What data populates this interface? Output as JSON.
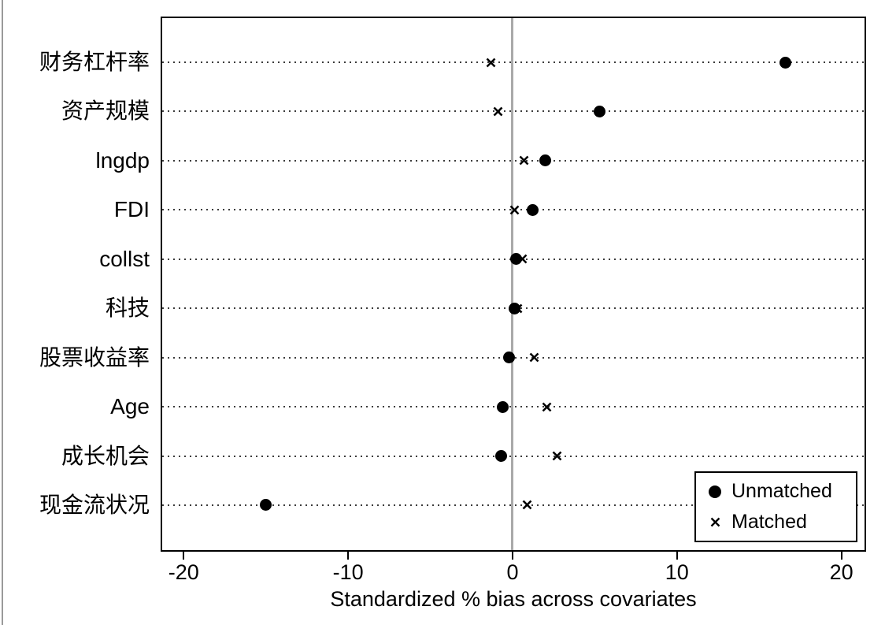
{
  "chart_data": {
    "type": "scatter",
    "orientation": "horizontal-dot-plot",
    "title": "",
    "xlabel": "Standardized % bias across covariates",
    "ylabel": "",
    "xlim": [
      -21.4,
      21.5
    ],
    "x_ticks": [
      -20,
      -10,
      0,
      10,
      20
    ],
    "x_tick_labels": [
      "-20",
      "-10",
      "0",
      "10",
      "20"
    ],
    "reference_line_x": 0,
    "grid": "dotted horizontal line per category",
    "legend_position": "inside bottom-right",
    "categories": [
      "财务杠杆率",
      "资产规模",
      "lngdp",
      "FDI",
      "collst",
      "科技",
      "股票收益率",
      "Age",
      "成长机会",
      "现金流状况"
    ],
    "series": [
      {
        "name": "Unmatched",
        "marker": "filled-circle",
        "color": "#000000",
        "values": [
          16.6,
          5.3,
          2.0,
          1.2,
          0.2,
          0.1,
          -0.2,
          -0.6,
          -0.7,
          -15.0
        ]
      },
      {
        "name": "Matched",
        "marker": "x",
        "color": "#000000",
        "values": [
          -1.3,
          -0.9,
          0.7,
          0.1,
          0.6,
          0.3,
          1.3,
          2.1,
          2.7,
          0.9
        ]
      }
    ],
    "colors": {
      "marker": "#000000",
      "reference_line": "#a9a9a9",
      "gridline": "#3c3c3c",
      "frame": "#000000",
      "background": "#ffffff"
    }
  }
}
